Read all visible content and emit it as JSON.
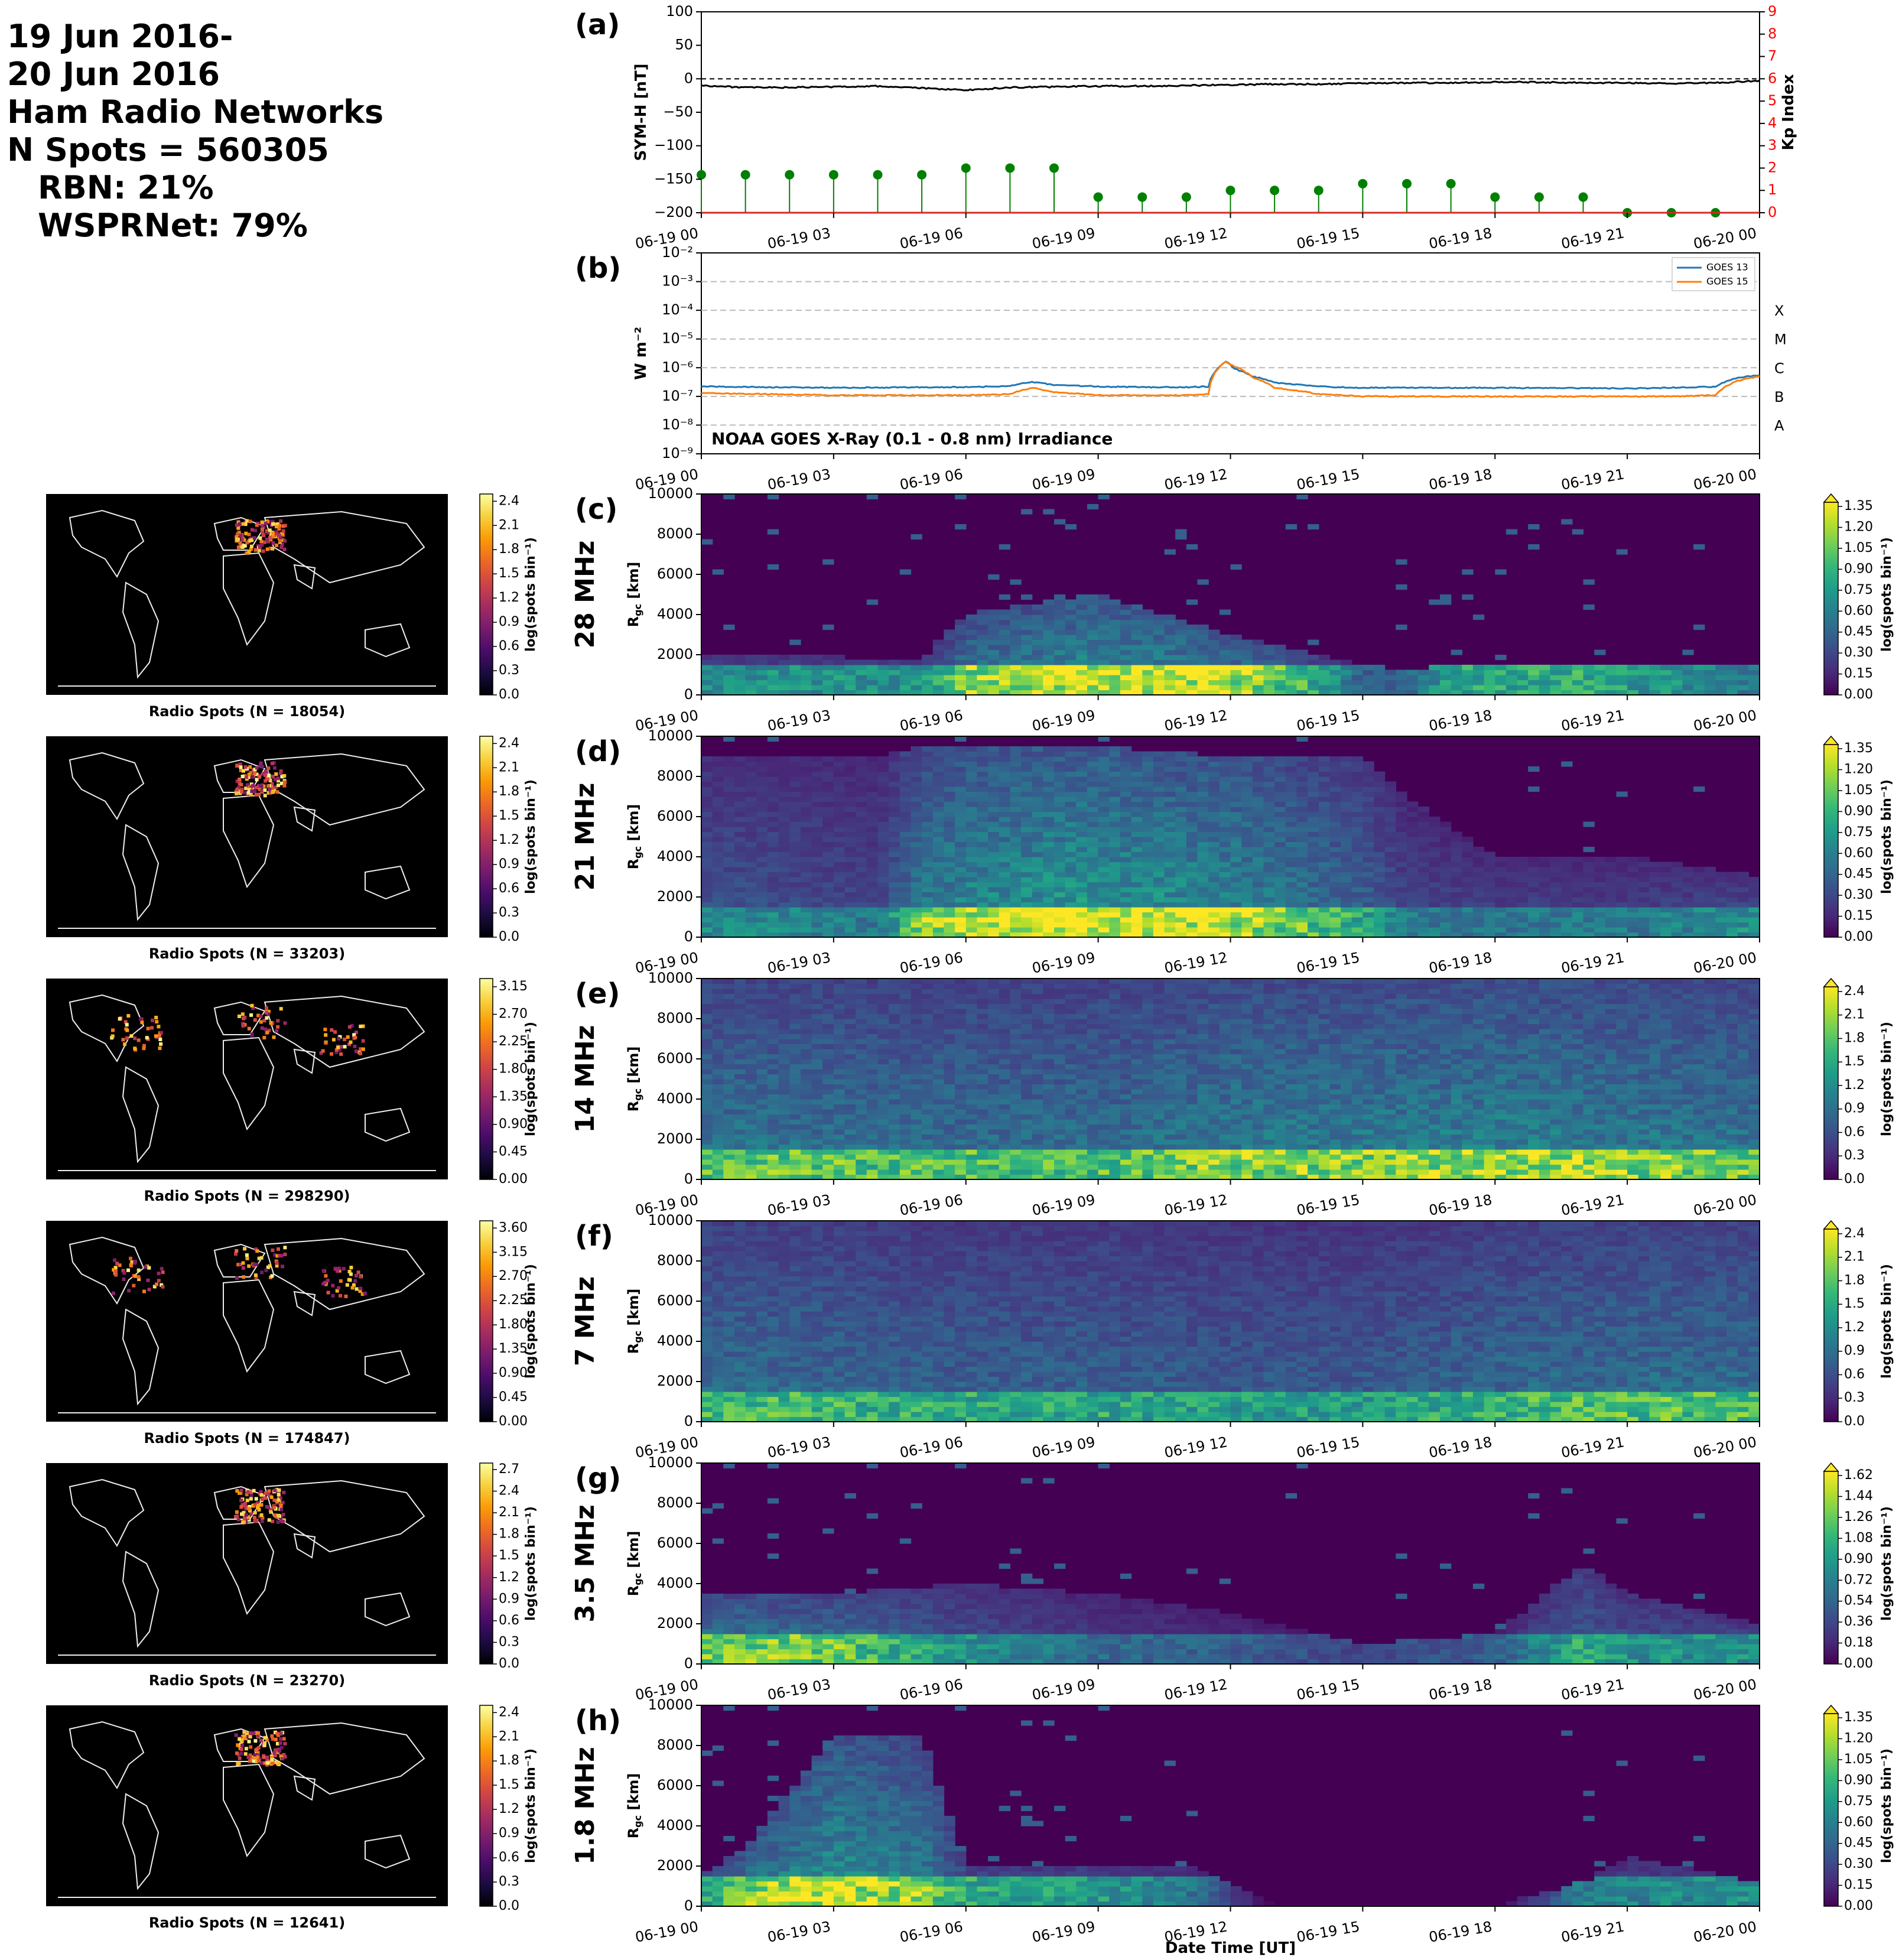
{
  "header": {
    "line1": "19 Jun 2016-",
    "line2": "20 Jun 2016",
    "line3": "Ham Radio Networks",
    "line4": "N Spots = 560305",
    "line5": "RBN: 21%",
    "line6": "WSPRNet: 79%"
  },
  "colors": {
    "symh": "#000000",
    "kp": "#008000",
    "goes13": "#1f77b4",
    "goes15": "#ff7f0e",
    "kp_axis": "#ff0000",
    "viridis": [
      "#440154",
      "#482878",
      "#3e4989",
      "#31688e",
      "#26828e",
      "#1f9e89",
      "#35b779",
      "#6ece58",
      "#b5de2b",
      "#fde725"
    ],
    "inferno": [
      "#000004",
      "#1b0c41",
      "#4a0c6b",
      "#781c6d",
      "#a52c60",
      "#cf4446",
      "#ed6925",
      "#fb9b06",
      "#f7d13d",
      "#fcffa4"
    ]
  },
  "time_ticks": [
    "06-19 00",
    "06-19 03",
    "06-19 06",
    "06-19 09",
    "06-19 12",
    "06-19 15",
    "06-19 18",
    "06-19 21",
    "06-20 00"
  ],
  "chart_data": [
    {
      "panel": "(a)",
      "type": "line",
      "ylabel": "SYM-H [nT]",
      "ylim": [
        -200,
        100
      ],
      "yticks": [
        "100",
        "50",
        "0",
        "−50",
        "−100",
        "−150",
        "−200"
      ],
      "series": [
        {
          "name": "SYM-H",
          "x_hours": [
            0,
            1,
            2,
            3,
            4,
            5,
            6,
            7,
            8,
            9,
            10,
            11,
            12,
            13,
            14,
            15,
            16,
            17,
            18,
            19,
            20,
            21,
            22,
            23,
            24
          ],
          "values": [
            -10,
            -13,
            -13,
            -12,
            -11,
            -14,
            -17,
            -13,
            -12,
            -11,
            -11,
            -10,
            -9,
            -8,
            -8,
            -7,
            -6,
            -6,
            -5,
            -5,
            -6,
            -6,
            -7,
            -6,
            -3
          ]
        }
      ],
      "kp_axis": {
        "label": "Kp Index",
        "ylim": [
          0,
          9
        ],
        "ticks": [
          "0",
          "1",
          "2",
          "3",
          "4",
          "5",
          "6",
          "7",
          "8",
          "9"
        ]
      },
      "kp": {
        "x_hours": [
          0,
          1,
          2,
          3,
          4,
          5,
          6,
          7,
          8,
          9,
          10,
          11,
          12,
          13,
          14,
          15,
          16,
          17,
          18,
          19,
          20,
          21,
          22,
          23
        ],
        "values": [
          1.7,
          1.7,
          1.7,
          1.7,
          1.7,
          1.7,
          2.0,
          2.0,
          2.0,
          0.7,
          0.7,
          0.7,
          1.0,
          1.0,
          1.0,
          1.3,
          1.3,
          1.3,
          0.7,
          0.7,
          0.7,
          0.0,
          0.0,
          0.0
        ]
      }
    },
    {
      "panel": "(b)",
      "type": "line",
      "ylabel": "W m⁻²",
      "scale": "log",
      "ylim": [
        1e-09,
        0.01
      ],
      "yticks": [
        "10⁻⁹",
        "10⁻⁸",
        "10⁻⁷",
        "10⁻⁶",
        "10⁻⁵",
        "10⁻⁴",
        "10⁻³",
        "10⁻²"
      ],
      "class_labels": [
        "A",
        "B",
        "C",
        "M",
        "X"
      ],
      "annotation": "NOAA GOES X-Ray (0.1 - 0.8 nm) Irradiance",
      "series": [
        {
          "name": "GOES 13",
          "x_hours": [
            0,
            3,
            6,
            7,
            7.5,
            8,
            9,
            10,
            11,
            11.5,
            11.9,
            12.1,
            12.5,
            13,
            14,
            15,
            18,
            21,
            22,
            23,
            23.5,
            24
          ],
          "values": [
            2.2e-07,
            2e-07,
            2.1e-07,
            2.3e-07,
            3.2e-07,
            2.5e-07,
            2.2e-07,
            2.1e-07,
            2.1e-07,
            2.2e-07,
            1.6e-06,
            9e-07,
            5e-07,
            3e-07,
            2.2e-07,
            2e-07,
            2e-07,
            1.9e-07,
            2e-07,
            2.2e-07,
            4.5e-07,
            5.5e-07
          ]
        },
        {
          "name": "GOES 15",
          "x_hours": [
            0,
            3,
            6,
            7,
            7.5,
            8,
            9,
            10,
            11,
            11.5,
            11.9,
            12.1,
            12.5,
            13,
            14,
            15,
            18,
            21,
            22,
            23,
            23.5,
            24
          ],
          "values": [
            1.3e-07,
            1.1e-07,
            1.1e-07,
            1.2e-07,
            2e-07,
            1.4e-07,
            1.1e-07,
            1.1e-07,
            1.1e-07,
            1.2e-07,
            1.6e-06,
            1.1e-06,
            4.5e-07,
            2e-07,
            1.2e-07,
            1e-07,
            1e-07,
            1e-07,
            1e-07,
            1.1e-07,
            3.5e-07,
            5e-07
          ]
        }
      ]
    },
    {
      "panel": "(c)",
      "type": "heatmap",
      "band": "28 MHz",
      "ylim": [
        0,
        10000
      ],
      "ylabel": "R_gc [km]",
      "cbar_ticks": [
        "0.00",
        "0.15",
        "0.30",
        "0.45",
        "0.60",
        "0.75",
        "0.90",
        "1.05",
        "1.20",
        "1.35"
      ],
      "cbar_label": "log(spots bin⁻¹)",
      "map_caption": "Radio Spots (N = 18054)",
      "map_cbar_ticks": [
        "0.0",
        "0.3",
        "0.6",
        "0.9",
        "1.2",
        "1.5",
        "1.8",
        "2.1",
        "2.4"
      ],
      "profile": {
        "x_hours": [
          0,
          5,
          6,
          9,
          12,
          14,
          15,
          16,
          17,
          20,
          24
        ],
        "ext": [
          2000,
          1800,
          4000,
          5000,
          3000,
          2000,
          1500,
          1200,
          1500,
          1600,
          1500
        ],
        "int": [
          0.5,
          0.5,
          0.8,
          0.95,
          0.9,
          0.6,
          0.3,
          0.3,
          0.6,
          0.6,
          0.4
        ]
      }
    },
    {
      "panel": "(d)",
      "type": "heatmap",
      "band": "21 MHz",
      "ylim": [
        0,
        10000
      ],
      "ylabel": "R_gc [km]",
      "cbar_ticks": [
        "0.00",
        "0.15",
        "0.30",
        "0.45",
        "0.60",
        "0.75",
        "0.90",
        "1.05",
        "1.20",
        "1.35"
      ],
      "cbar_label": "log(spots bin⁻¹)",
      "map_caption": "Radio Spots (N = 33203)",
      "map_cbar_ticks": [
        "0.0",
        "0.3",
        "0.6",
        "0.9",
        "1.2",
        "1.5",
        "1.8",
        "2.1",
        "2.4"
      ],
      "profile": {
        "x_hours": [
          0,
          4,
          5,
          6,
          8,
          9,
          12,
          15,
          16,
          18,
          21,
          24
        ],
        "ext": [
          9000,
          9000,
          9500,
          9500,
          9500,
          9500,
          9000,
          9000,
          7000,
          4000,
          4000,
          3000
        ],
        "int": [
          0.5,
          0.4,
          0.8,
          0.9,
          1.0,
          1.0,
          0.9,
          0.6,
          0.4,
          0.4,
          0.4,
          0.5
        ]
      }
    },
    {
      "panel": "(e)",
      "type": "heatmap",
      "band": "14 MHz",
      "ylim": [
        0,
        10000
      ],
      "ylabel": "R_gc [km]",
      "cbar_ticks": [
        "0.0",
        "0.3",
        "0.6",
        "0.9",
        "1.2",
        "1.5",
        "1.8",
        "2.1",
        "2.4"
      ],
      "cbar_label": "log(spots bin⁻¹)",
      "map_caption": "Radio Spots (N = 298290)",
      "map_cbar_ticks": [
        "0.00",
        "0.45",
        "0.90",
        "1.35",
        "1.80",
        "2.25",
        "2.70",
        "3.15"
      ],
      "profile": {
        "x_hours": [
          0,
          6,
          9,
          12,
          15,
          18,
          21,
          24
        ],
        "ext": [
          10000,
          10000,
          10000,
          10000,
          10000,
          10000,
          10000,
          10000
        ],
        "int": [
          0.75,
          0.7,
          0.7,
          0.8,
          0.8,
          0.85,
          0.8,
          0.75
        ]
      }
    },
    {
      "panel": "(f)",
      "type": "heatmap",
      "band": "7 MHz",
      "ylim": [
        0,
        10000
      ],
      "ylabel": "R_gc [km]",
      "cbar_ticks": [
        "0.0",
        "0.3",
        "0.6",
        "0.9",
        "1.2",
        "1.5",
        "1.8",
        "2.1",
        "2.4"
      ],
      "cbar_label": "log(spots bin⁻¹)",
      "map_caption": "Radio Spots (N = 174847)",
      "map_cbar_ticks": [
        "0.00",
        "0.45",
        "0.90",
        "1.35",
        "1.80",
        "2.25",
        "2.70",
        "3.15",
        "3.60"
      ],
      "profile": {
        "x_hours": [
          0,
          6,
          9,
          12,
          15,
          18,
          21,
          24
        ],
        "ext": [
          10000,
          10000,
          10000,
          10000,
          10000,
          10000,
          10000,
          10000
        ],
        "int": [
          0.7,
          0.6,
          0.6,
          0.55,
          0.55,
          0.65,
          0.7,
          0.7
        ]
      }
    },
    {
      "panel": "(g)",
      "type": "heatmap",
      "band": "3.5 MHz",
      "ylim": [
        0,
        10000
      ],
      "ylabel": "R_gc [km]",
      "cbar_ticks": [
        "0.00",
        "0.18",
        "0.36",
        "0.54",
        "0.72",
        "0.90",
        "1.08",
        "1.26",
        "1.44",
        "1.62"
      ],
      "cbar_label": "log(spots bin⁻¹)",
      "map_caption": "Radio Spots (N = 23270)",
      "map_cbar_ticks": [
        "0.0",
        "0.3",
        "0.6",
        "0.9",
        "1.2",
        "1.5",
        "1.8",
        "2.1",
        "2.4",
        "2.7"
      ],
      "profile": {
        "x_hours": [
          0,
          3,
          6,
          9,
          12,
          15,
          18,
          20,
          21,
          24
        ],
        "ext": [
          3500,
          3500,
          4000,
          3500,
          2500,
          1000,
          1500,
          5000,
          3500,
          2000
        ],
        "int": [
          0.8,
          0.75,
          0.5,
          0.35,
          0.3,
          0.2,
          0.3,
          0.6,
          0.5,
          0.5
        ]
      }
    },
    {
      "panel": "(h)",
      "type": "heatmap",
      "band": "1.8 MHz",
      "ylim": [
        0,
        10000
      ],
      "ylabel": "R_gc [km]",
      "cbar_ticks": [
        "0.00",
        "0.15",
        "0.30",
        "0.45",
        "0.60",
        "0.75",
        "0.90",
        "1.05",
        "1.20",
        "1.35"
      ],
      "cbar_label": "log(spots bin⁻¹)",
      "xlabel": "Date Time [UT]",
      "map_caption": "Radio Spots (N = 12641)",
      "map_cbar_ticks": [
        "0.0",
        "0.3",
        "0.6",
        "0.9",
        "1.2",
        "1.5",
        "1.8",
        "2.1",
        "2.4"
      ],
      "profile": {
        "x_hours": [
          0,
          1,
          3,
          5,
          6,
          9,
          11,
          12,
          13,
          15,
          18,
          20,
          21,
          24
        ],
        "ext": [
          1500,
          3000,
          8500,
          8500,
          2000,
          2000,
          2000,
          1200,
          0,
          0,
          0,
          1200,
          2500,
          1200
        ],
        "int": [
          0.6,
          0.8,
          0.95,
          0.8,
          0.6,
          0.55,
          0.4,
          0.2,
          0,
          0,
          0,
          0.4,
          0.45,
          0.5
        ]
      }
    }
  ]
}
